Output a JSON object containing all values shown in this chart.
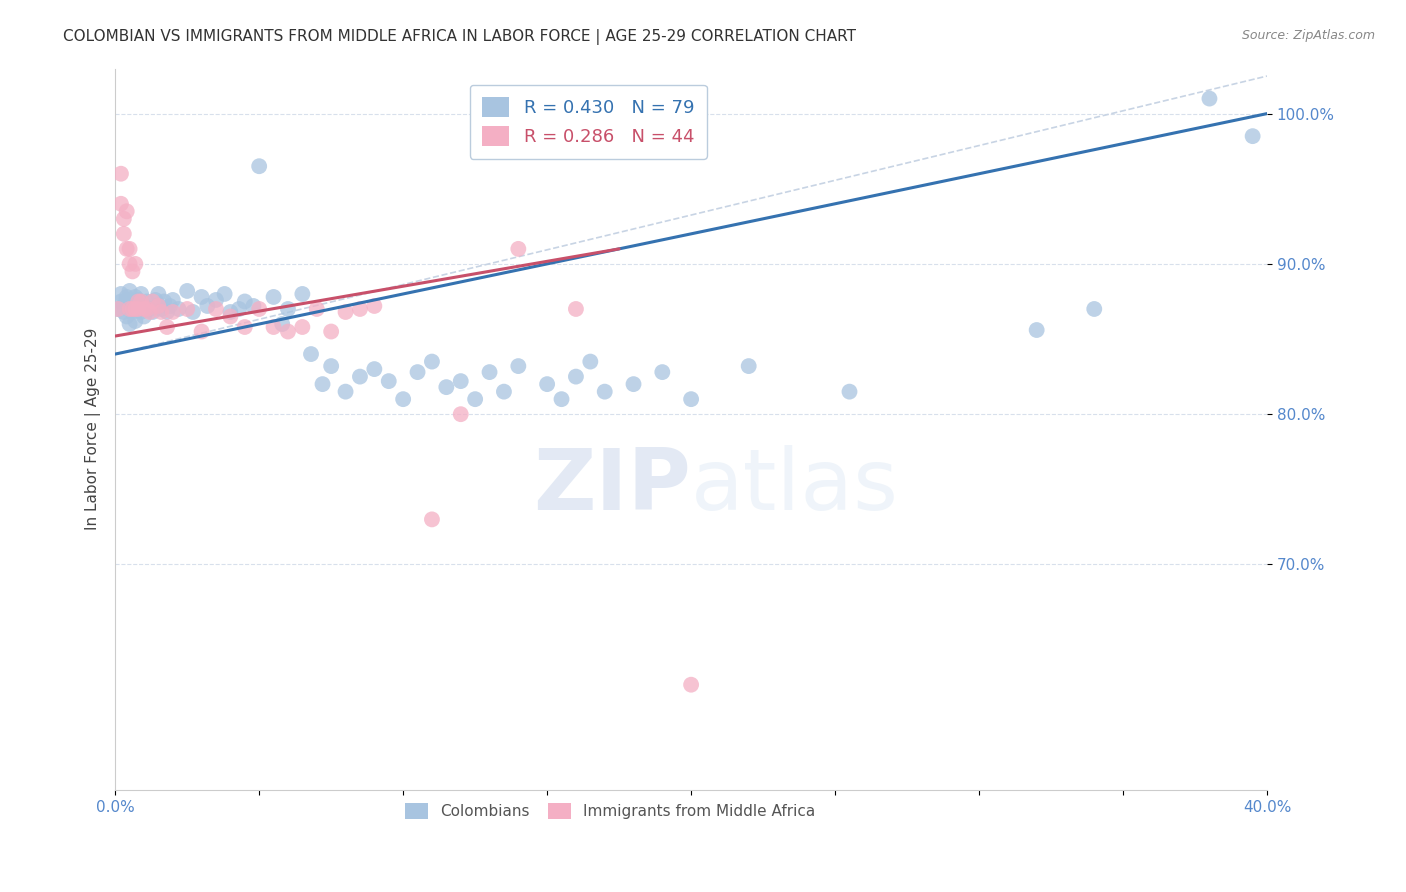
{
  "title": "COLOMBIAN VS IMMIGRANTS FROM MIDDLE AFRICA IN LABOR FORCE | AGE 25-29 CORRELATION CHART",
  "source": "Source: ZipAtlas.com",
  "ylabel": "In Labor Force | Age 25-29",
  "xlim": [
    0.0,
    0.4
  ],
  "ylim": [
    0.55,
    1.03
  ],
  "yticks": [
    0.7,
    0.8,
    0.9,
    1.0
  ],
  "ytick_labels": [
    "70.0%",
    "80.0%",
    "90.0%",
    "100.0%"
  ],
  "xticks": [
    0.0,
    0.05,
    0.1,
    0.15,
    0.2,
    0.25,
    0.3,
    0.35,
    0.4
  ],
  "xtick_labels": [
    "0.0%",
    "",
    "",
    "",
    "",
    "",
    "",
    "",
    "40.0%"
  ],
  "blue_color": "#a8c4e0",
  "pink_color": "#f4afc4",
  "blue_line_color": "#3572b0",
  "pink_line_color": "#c8506a",
  "dash_line_color": "#c8d4e4",
  "legend_blue_r": "0.430",
  "legend_blue_n": "79",
  "legend_pink_r": "0.286",
  "legend_pink_n": "44",
  "blue_scatter": [
    [
      0.001,
      0.87
    ],
    [
      0.002,
      0.875
    ],
    [
      0.002,
      0.88
    ],
    [
      0.003,
      0.868
    ],
    [
      0.003,
      0.872
    ],
    [
      0.004,
      0.876
    ],
    [
      0.004,
      0.878
    ],
    [
      0.004,
      0.865
    ],
    [
      0.005,
      0.87
    ],
    [
      0.005,
      0.882
    ],
    [
      0.005,
      0.86
    ],
    [
      0.006,
      0.875
    ],
    [
      0.006,
      0.868
    ],
    [
      0.007,
      0.872
    ],
    [
      0.007,
      0.878
    ],
    [
      0.007,
      0.862
    ],
    [
      0.008,
      0.87
    ],
    [
      0.008,
      0.876
    ],
    [
      0.009,
      0.868
    ],
    [
      0.009,
      0.88
    ],
    [
      0.01,
      0.872
    ],
    [
      0.01,
      0.865
    ],
    [
      0.011,
      0.875
    ],
    [
      0.012,
      0.87
    ],
    [
      0.013,
      0.868
    ],
    [
      0.014,
      0.876
    ],
    [
      0.015,
      0.872
    ],
    [
      0.015,
      0.88
    ],
    [
      0.016,
      0.87
    ],
    [
      0.017,
      0.875
    ],
    [
      0.018,
      0.868
    ],
    [
      0.019,
      0.872
    ],
    [
      0.02,
      0.876
    ],
    [
      0.022,
      0.87
    ],
    [
      0.025,
      0.882
    ],
    [
      0.027,
      0.868
    ],
    [
      0.03,
      0.878
    ],
    [
      0.032,
      0.872
    ],
    [
      0.035,
      0.876
    ],
    [
      0.038,
      0.88
    ],
    [
      0.04,
      0.868
    ],
    [
      0.043,
      0.87
    ],
    [
      0.045,
      0.875
    ],
    [
      0.048,
      0.872
    ],
    [
      0.05,
      0.965
    ],
    [
      0.055,
      0.878
    ],
    [
      0.058,
      0.86
    ],
    [
      0.06,
      0.87
    ],
    [
      0.065,
      0.88
    ],
    [
      0.068,
      0.84
    ],
    [
      0.072,
      0.82
    ],
    [
      0.075,
      0.832
    ],
    [
      0.08,
      0.815
    ],
    [
      0.085,
      0.825
    ],
    [
      0.09,
      0.83
    ],
    [
      0.095,
      0.822
    ],
    [
      0.1,
      0.81
    ],
    [
      0.105,
      0.828
    ],
    [
      0.11,
      0.835
    ],
    [
      0.115,
      0.818
    ],
    [
      0.12,
      0.822
    ],
    [
      0.125,
      0.81
    ],
    [
      0.13,
      0.828
    ],
    [
      0.135,
      0.815
    ],
    [
      0.14,
      0.832
    ],
    [
      0.15,
      0.82
    ],
    [
      0.155,
      0.81
    ],
    [
      0.16,
      0.825
    ],
    [
      0.165,
      0.835
    ],
    [
      0.17,
      0.815
    ],
    [
      0.18,
      0.82
    ],
    [
      0.19,
      0.828
    ],
    [
      0.2,
      0.81
    ],
    [
      0.22,
      0.832
    ],
    [
      0.255,
      0.815
    ],
    [
      0.32,
      0.856
    ],
    [
      0.34,
      0.87
    ],
    [
      0.38,
      1.01
    ],
    [
      0.395,
      0.985
    ]
  ],
  "pink_scatter": [
    [
      0.001,
      0.87
    ],
    [
      0.002,
      0.94
    ],
    [
      0.002,
      0.96
    ],
    [
      0.003,
      0.93
    ],
    [
      0.003,
      0.92
    ],
    [
      0.004,
      0.91
    ],
    [
      0.004,
      0.935
    ],
    [
      0.005,
      0.9
    ],
    [
      0.005,
      0.87
    ],
    [
      0.005,
      0.91
    ],
    [
      0.006,
      0.87
    ],
    [
      0.006,
      0.895
    ],
    [
      0.007,
      0.87
    ],
    [
      0.007,
      0.9
    ],
    [
      0.008,
      0.87
    ],
    [
      0.008,
      0.875
    ],
    [
      0.009,
      0.875
    ],
    [
      0.01,
      0.87
    ],
    [
      0.011,
      0.87
    ],
    [
      0.012,
      0.868
    ],
    [
      0.013,
      0.875
    ],
    [
      0.015,
      0.872
    ],
    [
      0.016,
      0.868
    ],
    [
      0.018,
      0.858
    ],
    [
      0.02,
      0.868
    ],
    [
      0.025,
      0.87
    ],
    [
      0.03,
      0.855
    ],
    [
      0.035,
      0.87
    ],
    [
      0.04,
      0.865
    ],
    [
      0.045,
      0.858
    ],
    [
      0.05,
      0.87
    ],
    [
      0.055,
      0.858
    ],
    [
      0.06,
      0.855
    ],
    [
      0.065,
      0.858
    ],
    [
      0.07,
      0.87
    ],
    [
      0.075,
      0.855
    ],
    [
      0.08,
      0.868
    ],
    [
      0.085,
      0.87
    ],
    [
      0.09,
      0.872
    ],
    [
      0.11,
      0.73
    ],
    [
      0.12,
      0.8
    ],
    [
      0.14,
      0.91
    ],
    [
      0.16,
      0.87
    ],
    [
      0.2,
      0.62
    ]
  ],
  "watermark_zip": "ZIP",
  "watermark_atlas": "atlas",
  "background_color": "#ffffff",
  "grid_color": "#d8e0ec",
  "title_color": "#333333",
  "axis_label_color": "#444444",
  "tick_color": "#5588cc",
  "title_fontsize": 11,
  "source_fontsize": 9,
  "ylabel_fontsize": 11
}
